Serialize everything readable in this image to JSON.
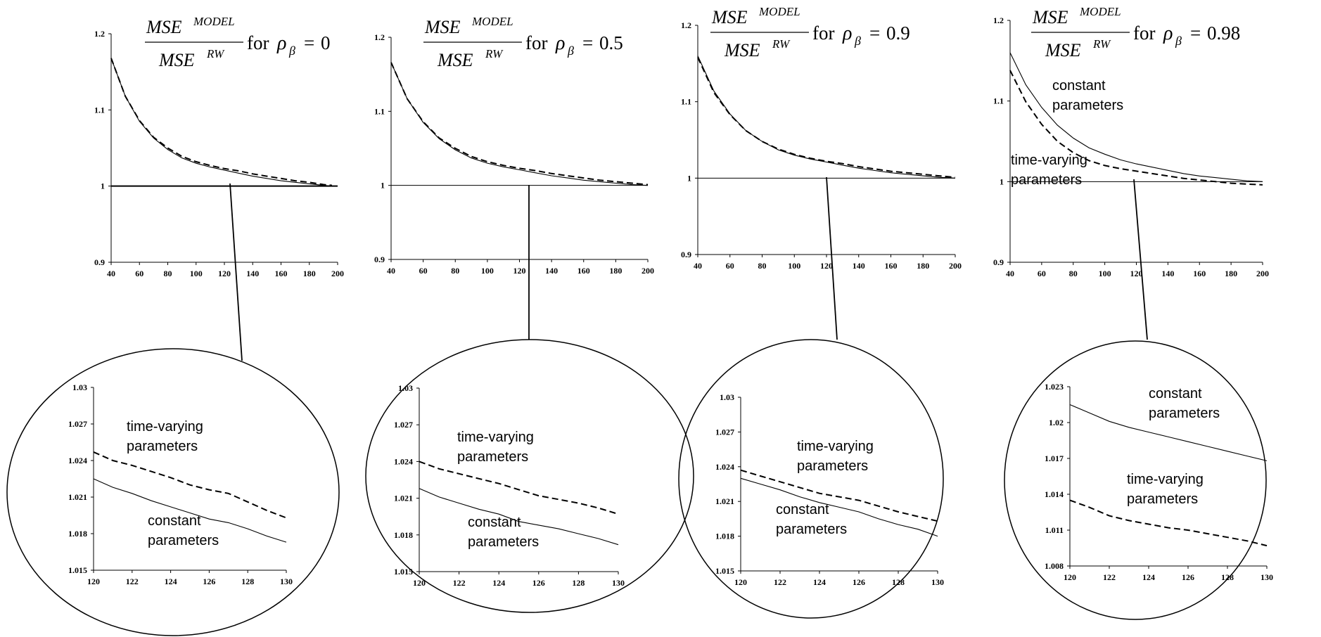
{
  "title_parts": {
    "mse": "MSE",
    "model_sup": "MODEL",
    "rw_sup": "RW",
    "for_word": "for",
    "rho": "ρ",
    "beta": "β",
    "equals": "="
  },
  "chart_data": [
    {
      "type": "line",
      "title_rho_value": "0",
      "x": [
        40,
        50,
        60,
        70,
        80,
        90,
        100,
        110,
        120,
        130,
        140,
        150,
        160,
        170,
        180,
        190,
        196
      ],
      "xlim": [
        40,
        200
      ],
      "ylim": [
        0.9,
        1.2
      ],
      "xticks": [
        "40",
        "60",
        "80",
        "100",
        "120",
        "140",
        "160",
        "180",
        "200"
      ],
      "yticks": [
        "0.9",
        "1",
        "1.1",
        "1.2"
      ],
      "grid": false,
      "series": [
        {
          "style": "solid",
          "values": [
            1.168,
            1.118,
            1.085,
            1.063,
            1.048,
            1.037,
            1.03,
            1.025,
            1.021,
            1.017,
            1.013,
            1.01,
            1.007,
            1.005,
            1.003,
            1.001,
            1.0
          ]
        },
        {
          "style": "dashed",
          "values": [
            1.168,
            1.118,
            1.086,
            1.064,
            1.05,
            1.039,
            1.032,
            1.027,
            1.023,
            1.02,
            1.016,
            1.013,
            1.01,
            1.007,
            1.005,
            1.002,
            1.001
          ]
        }
      ],
      "reference_line": 1,
      "inset": {
        "xlim": [
          120,
          130
        ],
        "ylim": [
          1.015,
          1.03
        ],
        "xticks": [
          "120",
          "122",
          "124",
          "126",
          "128",
          "130"
        ],
        "yticks": [
          "1.015",
          "1.018",
          "1.021",
          "1.024",
          "1.027",
          "1.03"
        ],
        "x": [
          120,
          121,
          122,
          123,
          124,
          125,
          126,
          127,
          128,
          129,
          130
        ],
        "series": [
          {
            "name": "constant parameters",
            "style": "solid",
            "values": [
              1.0225,
              1.0218,
              1.0213,
              1.0207,
              1.0202,
              1.0197,
              1.0192,
              1.0189,
              1.0184,
              1.0178,
              1.0173
            ]
          },
          {
            "name": "time-varying parameters",
            "style": "dashed",
            "values": [
              1.0247,
              1.024,
              1.0236,
              1.0231,
              1.0226,
              1.022,
              1.0216,
              1.0213,
              1.0206,
              1.0199,
              1.0193
            ]
          }
        ],
        "labels": [
          {
            "text": [
              "time-varying",
              "parameters"
            ],
            "series": "time-varying parameters"
          },
          {
            "text": [
              "constant",
              "parameters"
            ],
            "series": "constant parameters"
          }
        ]
      }
    },
    {
      "type": "line",
      "title_rho_value": "0.5",
      "x": [
        40,
        50,
        60,
        70,
        80,
        90,
        100,
        110,
        120,
        130,
        140,
        150,
        160,
        170,
        180,
        190,
        200
      ],
      "xlim": [
        40,
        200
      ],
      "ylim": [
        0.9,
        1.2
      ],
      "xticks": [
        "40",
        "60",
        "80",
        "100",
        "120",
        "140",
        "160",
        "180",
        "200"
      ],
      "yticks": [
        "0.9",
        "1",
        "1.1",
        "1.2"
      ],
      "grid": false,
      "series": [
        {
          "style": "solid",
          "values": [
            1.166,
            1.117,
            1.085,
            1.063,
            1.048,
            1.037,
            1.03,
            1.025,
            1.021,
            1.017,
            1.013,
            1.01,
            1.007,
            1.005,
            1.003,
            1.001,
            1.0
          ]
        },
        {
          "style": "dashed",
          "values": [
            1.166,
            1.117,
            1.086,
            1.064,
            1.05,
            1.039,
            1.032,
            1.027,
            1.023,
            1.02,
            1.016,
            1.013,
            1.01,
            1.007,
            1.005,
            1.003,
            1.001
          ]
        }
      ],
      "reference_line": 1,
      "inset": {
        "xlim": [
          120,
          130
        ],
        "ylim": [
          1.015,
          1.03
        ],
        "xticks": [
          "120",
          "122",
          "124",
          "126",
          "128",
          "130"
        ],
        "yticks": [
          "1.015",
          "1.018",
          "1.021",
          "1.024",
          "1.027",
          "1.03"
        ],
        "x": [
          120,
          121,
          122,
          123,
          124,
          125,
          126,
          127,
          128,
          129,
          130
        ],
        "series": [
          {
            "name": "constant parameters",
            "style": "solid",
            "values": [
              1.0218,
              1.0211,
              1.0206,
              1.0201,
              1.0197,
              1.0191,
              1.0188,
              1.0185,
              1.0181,
              1.0177,
              1.0172
            ]
          },
          {
            "name": "time-varying parameters",
            "style": "dashed",
            "values": [
              1.024,
              1.0234,
              1.023,
              1.0226,
              1.0222,
              1.0217,
              1.0212,
              1.0209,
              1.0206,
              1.0202,
              1.0197
            ]
          }
        ],
        "labels": [
          {
            "text": [
              "time-varying",
              "parameters"
            ],
            "series": "time-varying parameters"
          },
          {
            "text": [
              "constant",
              "parameters"
            ],
            "series": "constant parameters"
          }
        ]
      }
    },
    {
      "type": "line",
      "title_rho_value": "0.9",
      "x": [
        40,
        50,
        60,
        70,
        80,
        90,
        100,
        110,
        120,
        130,
        140,
        150,
        160,
        170,
        180,
        190,
        200
      ],
      "xlim": [
        40,
        200
      ],
      "ylim": [
        0.9,
        1.2
      ],
      "xticks": [
        "40",
        "60",
        "80",
        "100",
        "120",
        "140",
        "160",
        "180",
        "200"
      ],
      "yticks": [
        "0.9",
        "1",
        "1.1",
        "1.2"
      ],
      "grid": false,
      "series": [
        {
          "style": "solid",
          "values": [
            1.16,
            1.114,
            1.084,
            1.062,
            1.048,
            1.037,
            1.03,
            1.025,
            1.021,
            1.017,
            1.013,
            1.01,
            1.007,
            1.005,
            1.003,
            1.001,
            1.0
          ]
        },
        {
          "style": "dashed",
          "values": [
            1.158,
            1.112,
            1.083,
            1.062,
            1.048,
            1.038,
            1.031,
            1.026,
            1.022,
            1.019,
            1.015,
            1.012,
            1.009,
            1.007,
            1.005,
            1.003,
            1.001
          ]
        }
      ],
      "reference_line": 1,
      "inset": {
        "xlim": [
          120,
          130
        ],
        "ylim": [
          1.015,
          1.03
        ],
        "xticks": [
          "120",
          "122",
          "124",
          "126",
          "128",
          "130"
        ],
        "yticks": [
          "1.015",
          "1.018",
          "1.021",
          "1.024",
          "1.027",
          "1.03"
        ],
        "x": [
          120,
          121,
          122,
          123,
          124,
          125,
          126,
          127,
          128,
          129,
          130
        ],
        "series": [
          {
            "name": "constant parameters",
            "style": "solid",
            "values": [
              1.023,
              1.0225,
              1.022,
              1.0214,
              1.0209,
              1.0205,
              1.0201,
              1.0195,
              1.019,
              1.0186,
              1.018
            ]
          },
          {
            "name": "time-varying parameters",
            "style": "dashed",
            "values": [
              1.0237,
              1.0232,
              1.0227,
              1.0222,
              1.0217,
              1.0214,
              1.0211,
              1.0206,
              1.0201,
              1.0197,
              1.0193
            ]
          }
        ],
        "labels": [
          {
            "text": [
              "time-varying",
              "parameters"
            ],
            "series": "time-varying parameters"
          },
          {
            "text": [
              "constant",
              "parameters"
            ],
            "series": "constant parameters"
          }
        ]
      }
    },
    {
      "type": "line",
      "title_rho_value": "0.98",
      "x": [
        40,
        50,
        60,
        70,
        80,
        90,
        100,
        110,
        120,
        130,
        140,
        150,
        160,
        170,
        180,
        190,
        200
      ],
      "xlim": [
        40,
        200
      ],
      "ylim": [
        0.9,
        1.2
      ],
      "xticks": [
        "40",
        "60",
        "80",
        "100",
        "120",
        "140",
        "160",
        "180",
        "200"
      ],
      "yticks": [
        "0.9",
        "1",
        "1.1",
        "1.2"
      ],
      "grid": false,
      "series": [
        {
          "name": "constant parameters",
          "style": "solid",
          "values": [
            1.16,
            1.12,
            1.092,
            1.07,
            1.054,
            1.042,
            1.034,
            1.027,
            1.022,
            1.018,
            1.014,
            1.01,
            1.007,
            1.005,
            1.003,
            1.001,
            1.0
          ]
        },
        {
          "name": "time-varying parameters",
          "style": "dashed",
          "values": [
            1.138,
            1.099,
            1.071,
            1.05,
            1.036,
            1.026,
            1.02,
            1.016,
            1.013,
            1.01,
            1.007,
            1.004,
            1.002,
            1.0,
            0.998,
            0.997,
            0.996
          ]
        }
      ],
      "reference_line": 1,
      "labels": [
        {
          "text": [
            "constant",
            "parameters"
          ],
          "series": "constant parameters"
        },
        {
          "text": [
            "time-varying",
            "parameters"
          ],
          "series": "time-varying parameters"
        }
      ],
      "inset": {
        "xlim": [
          120,
          130
        ],
        "ylim": [
          1.008,
          1.023
        ],
        "xticks": [
          "120",
          "122",
          "124",
          "126",
          "128",
          "130"
        ],
        "yticks": [
          "1.008",
          "1.011",
          "1.014",
          "1.017",
          "1.02",
          "1.023"
        ],
        "x": [
          120,
          121,
          122,
          123,
          124,
          125,
          126,
          127,
          128,
          129,
          130
        ],
        "series": [
          {
            "name": "constant parameters",
            "style": "solid",
            "values": [
              1.0215,
              1.0208,
              1.0201,
              1.0196,
              1.0192,
              1.0188,
              1.0184,
              1.018,
              1.0176,
              1.0172,
              1.0168
            ]
          },
          {
            "name": "time-varying parameters",
            "style": "dashed",
            "values": [
              1.0135,
              1.0129,
              1.0122,
              1.0118,
              1.0115,
              1.0112,
              1.011,
              1.0107,
              1.0104,
              1.0101,
              1.0097
            ]
          }
        ],
        "labels": [
          {
            "text": [
              "constant",
              "parameters"
            ],
            "series": "constant parameters"
          },
          {
            "text": [
              "time-varying",
              "parameters"
            ],
            "series": "time-varying parameters"
          }
        ]
      }
    }
  ]
}
